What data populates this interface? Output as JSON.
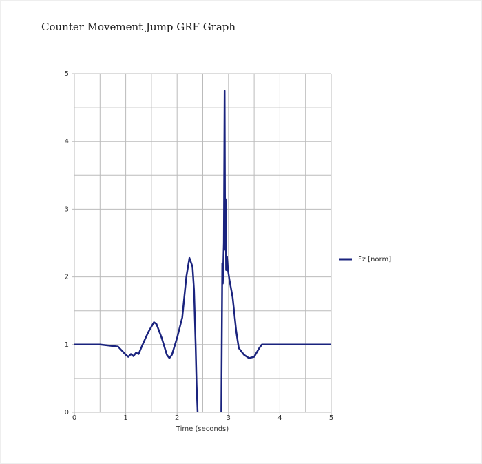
{
  "chart_data": {
    "type": "line",
    "title": "Counter Movement Jump GRF Graph",
    "x_label": "Time (seconds)",
    "xlim": [
      0,
      5
    ],
    "ylim": [
      0,
      5
    ],
    "xticks": [
      0,
      1,
      2,
      3,
      4,
      5
    ],
    "yticks": [
      0,
      1,
      2,
      3,
      4,
      5
    ],
    "minor_xticks": [
      0.5,
      1.5,
      2.5,
      3.5,
      4.5
    ],
    "minor_yticks": [
      0.5,
      1.5,
      2.5,
      3.5,
      4.5
    ],
    "grid": true,
    "legend": "right",
    "series": [
      {
        "name": "Fz [norm]",
        "color": "#1a237e",
        "x": [
          0,
          0.5,
          0.85,
          1.0,
          1.05,
          1.1,
          1.15,
          1.2,
          1.25,
          1.3,
          1.4,
          1.45,
          1.55,
          1.6,
          1.7,
          1.8,
          1.85,
          1.9,
          2.0,
          2.1,
          2.18,
          2.24,
          2.3,
          2.33,
          2.36,
          2.38,
          2.4,
          2.6,
          2.86,
          2.88,
          2.89,
          2.91,
          2.925,
          2.935,
          2.945,
          2.955,
          2.97,
          2.99,
          3.02,
          3.08,
          3.15,
          3.2,
          3.3,
          3.4,
          3.5,
          3.6,
          3.65,
          4.0,
          5.0
        ],
        "values": [
          1.0,
          1.0,
          0.97,
          0.85,
          0.82,
          0.86,
          0.83,
          0.88,
          0.86,
          0.95,
          1.12,
          1.2,
          1.33,
          1.3,
          1.1,
          0.85,
          0.8,
          0.85,
          1.1,
          1.4,
          2.0,
          2.28,
          2.15,
          1.8,
          1.0,
          0.4,
          0,
          null,
          0,
          2.2,
          1.9,
          2.5,
          4.75,
          2.4,
          3.15,
          2.1,
          2.3,
          2.1,
          1.95,
          1.7,
          1.2,
          0.95,
          0.85,
          0.8,
          0.82,
          0.95,
          1.0,
          1.0,
          1.0
        ]
      }
    ]
  }
}
